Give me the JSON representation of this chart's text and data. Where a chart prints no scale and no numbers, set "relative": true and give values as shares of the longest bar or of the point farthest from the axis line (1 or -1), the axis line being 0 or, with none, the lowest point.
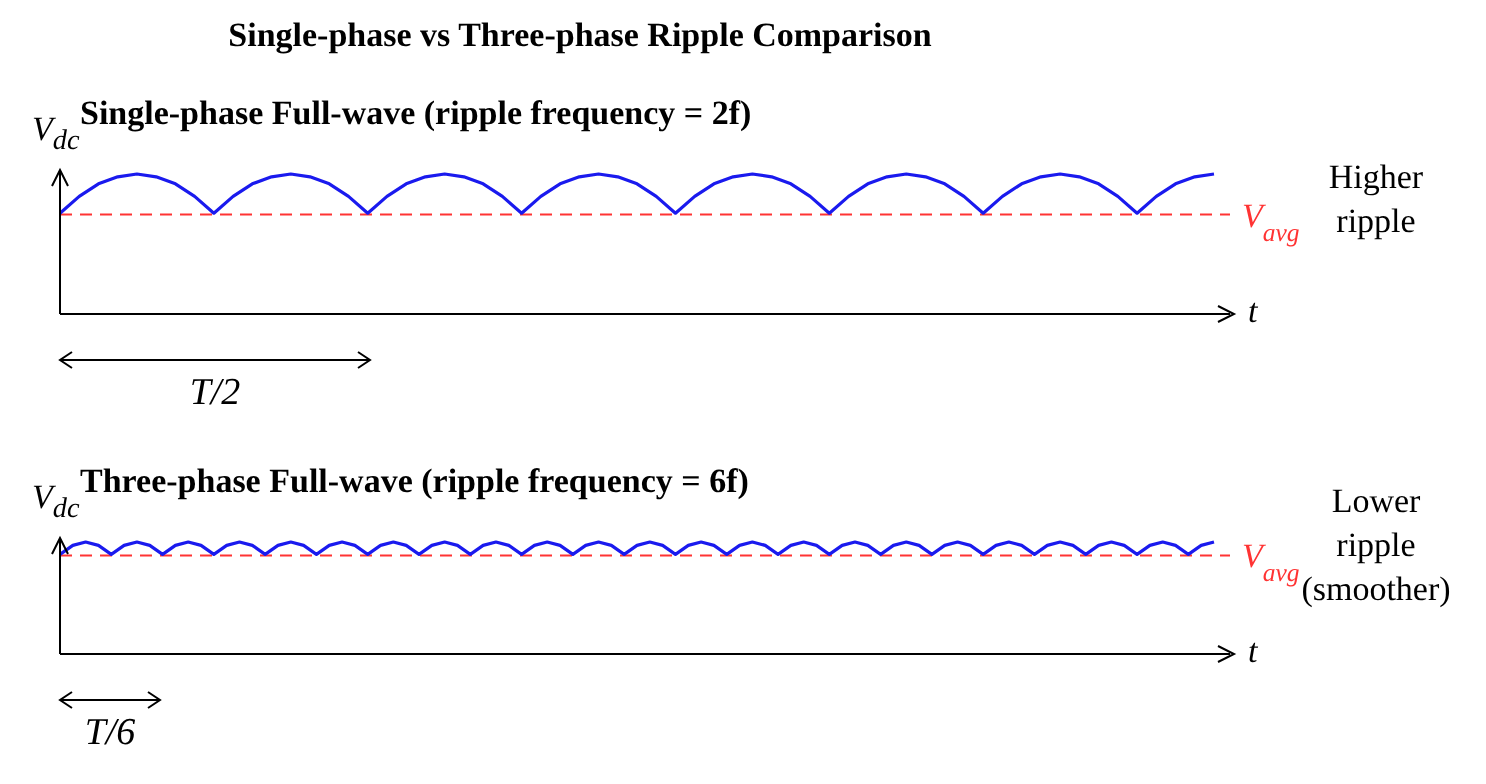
{
  "chart_data": [
    {
      "type": "line",
      "title": "Single-phase vs Three-phase Ripple Comparison",
      "subtitle": "Single-phase Full-wave (ripple frequency = 2f)",
      "ylabel": "V$_{dc}$",
      "xlabel": "t",
      "relative": true,
      "tick_labels": false,
      "categories": [
        null,
        null,
        null,
        null,
        null,
        null,
        null,
        null,
        null,
        null,
        null,
        null,
        null,
        null,
        null,
        null,
        null,
        null,
        null,
        null,
        null,
        null,
        null,
        null,
        null,
        null,
        null,
        null,
        null,
        null,
        null,
        null,
        null,
        null,
        null,
        null,
        null,
        null,
        null,
        null,
        null,
        null,
        null,
        null,
        null,
        null,
        null,
        null,
        null,
        null,
        null,
        null,
        null,
        null,
        null,
        null,
        null,
        null,
        null,
        null,
        null
      ],
      "series": [
        {
          "color": "#1a1aee",
          "values": [
            0.72,
            0.84,
            0.93,
            0.98,
            1,
            0.98,
            0.93,
            0.84,
            0.72,
            0.84,
            0.93,
            0.98,
            1,
            0.98,
            0.93,
            0.84,
            0.72,
            0.84,
            0.93,
            0.98,
            1,
            0.98,
            0.93,
            0.84,
            0.72,
            0.84,
            0.93,
            0.98,
            1,
            0.98,
            0.93,
            0.84,
            0.72,
            0.84,
            0.93,
            0.98,
            1,
            0.98,
            0.93,
            0.84,
            0.72,
            0.84,
            0.93,
            0.98,
            1,
            0.98,
            0.93,
            0.84,
            0.72,
            0.84,
            0.93,
            0.98,
            1,
            0.98,
            0.93,
            0.84,
            0.72,
            0.84,
            0.93,
            0.98,
            1
          ]
        }
      ],
      "ref_lines": [
        {
          "axis": "y",
          "value": 0.71,
          "label": "V$_{avg}$",
          "color": "#ff3333",
          "line_style": "dashed"
        }
      ],
      "annotations": [
        "Higher ripple",
        "T/2"
      ]
    },
    {
      "type": "line",
      "title": "Three-phase Full-wave (ripple frequency = 6f)",
      "ylabel": "V$_{dc}$",
      "xlabel": "t",
      "relative": true,
      "tick_labels": false,
      "categories": [
        null,
        null,
        null,
        null,
        null,
        null,
        null,
        null,
        null,
        null,
        null,
        null,
        null,
        null,
        null,
        null,
        null,
        null,
        null,
        null,
        null,
        null,
        null,
        null,
        null,
        null,
        null,
        null,
        null,
        null,
        null,
        null,
        null,
        null,
        null,
        null,
        null,
        null,
        null,
        null,
        null,
        null,
        null,
        null,
        null,
        null,
        null,
        null,
        null,
        null,
        null,
        null,
        null,
        null,
        null,
        null,
        null,
        null,
        null,
        null,
        null,
        null,
        null,
        null,
        null,
        null,
        null,
        null,
        null,
        null,
        null,
        null,
        null,
        null,
        null,
        null,
        null,
        null,
        null,
        null,
        null,
        null,
        null,
        null,
        null,
        null,
        null,
        null,
        null,
        null,
        null
      ],
      "series": [
        {
          "color": "#1a1aee",
          "values": [
            0.89,
            0.97,
            1,
            0.97,
            0.89,
            0.97,
            1,
            0.97,
            0.89,
            0.97,
            1,
            0.97,
            0.89,
            0.97,
            1,
            0.97,
            0.89,
            0.97,
            1,
            0.97,
            0.89,
            0.97,
            1,
            0.97,
            0.89,
            0.97,
            1,
            0.97,
            0.89,
            0.97,
            1,
            0.97,
            0.89,
            0.97,
            1,
            0.97,
            0.89,
            0.97,
            1,
            0.97,
            0.89,
            0.97,
            1,
            0.97,
            0.89,
            0.97,
            1,
            0.97,
            0.89,
            0.97,
            1,
            0.97,
            0.89,
            0.97,
            1,
            0.97,
            0.89,
            0.97,
            1,
            0.97,
            0.89,
            0.97,
            1,
            0.97,
            0.89,
            0.97,
            1,
            0.97,
            0.89,
            0.97,
            1,
            0.97,
            0.89,
            0.97,
            1,
            0.97,
            0.89,
            0.97,
            1,
            0.97,
            0.89,
            0.97,
            1,
            0.97,
            0.89,
            0.97,
            1,
            0.97,
            0.89,
            0.97,
            1
          ]
        }
      ],
      "ref_lines": [
        {
          "axis": "y",
          "value": 0.88,
          "label": "V$_{avg}$",
          "color": "#ff3333",
          "line_style": "dashed"
        }
      ],
      "annotations": [
        "Lower ripple (smoother)",
        "T/6"
      ]
    }
  ]
}
